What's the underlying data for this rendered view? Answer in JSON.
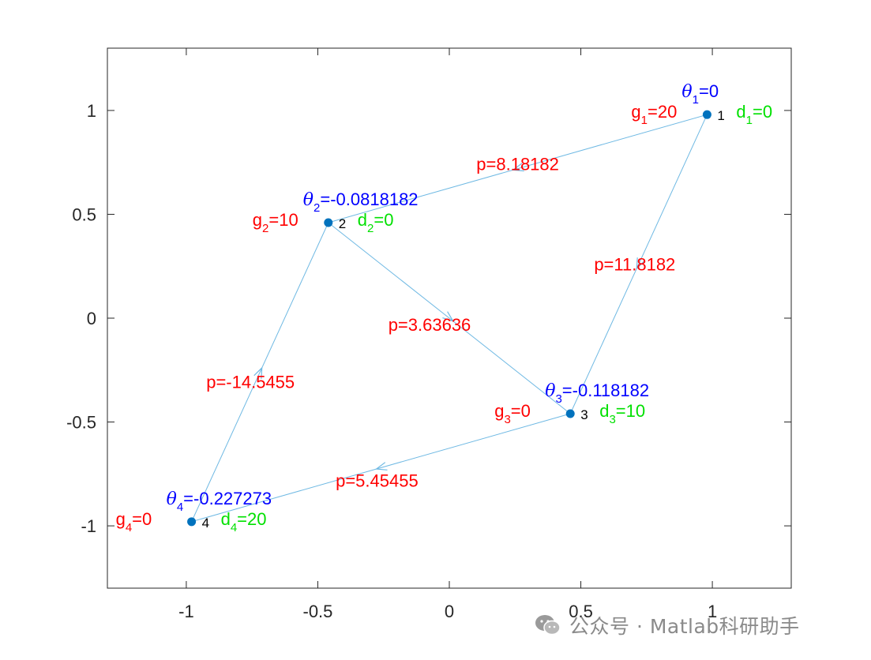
{
  "chart_data": {
    "type": "network-graph",
    "title": "",
    "xlim": [
      -1.3,
      1.3
    ],
    "ylim": [
      -1.3,
      1.3
    ],
    "xticks": [
      -1,
      -0.5,
      0,
      0.5,
      1
    ],
    "yticks": [
      -1,
      -0.5,
      0,
      0.5,
      1
    ],
    "xtick_labels": [
      "-1",
      "-0.5",
      "0",
      "0.5",
      "1"
    ],
    "ytick_labels": [
      "-1",
      "-0.5",
      "0",
      "0.5",
      "1"
    ],
    "colors": {
      "edge": "#6fb9e3",
      "node": "#0072bd",
      "flow_label": "#ff0000",
      "gen_label": "#ff0000",
      "demand_label": "#00e000",
      "angle_label": "#0000ff",
      "axis": "#262626"
    },
    "nodes": [
      {
        "id": "1",
        "x": 0.98,
        "y": 0.98,
        "theta": "=0",
        "g": "=20",
        "d": "=0",
        "theta_sub": "1",
        "g_sub": "1",
        "d_sub": "1"
      },
      {
        "id": "2",
        "x": -0.46,
        "y": 0.46,
        "theta": "=-0.0818182",
        "g": "=10",
        "d": "=0",
        "theta_sub": "2",
        "g_sub": "2",
        "d_sub": "2"
      },
      {
        "id": "3",
        "x": 0.46,
        "y": -0.46,
        "theta": "=-0.118182",
        "g": "=0",
        "d": "=10",
        "theta_sub": "3",
        "g_sub": "3",
        "d_sub": "3"
      },
      {
        "id": "4",
        "x": -0.98,
        "y": -0.98,
        "theta": "=-0.227273",
        "g": "=0",
        "d": "=20",
        "theta_sub": "4",
        "g_sub": "4",
        "d_sub": "4"
      }
    ],
    "edges": [
      {
        "from": "1",
        "to": "2",
        "label": "p=8.18182"
      },
      {
        "from": "1",
        "to": "3",
        "label": "p=11.8182"
      },
      {
        "from": "2",
        "to": "3",
        "label": "p=3.63636"
      },
      {
        "from": "4",
        "to": "2",
        "label": "p=-14.5455"
      },
      {
        "from": "3",
        "to": "4",
        "label": "p=5.45455"
      }
    ]
  },
  "watermark": {
    "text": "公众号 · Matlab科研助手",
    "icon": "wechat-icon"
  }
}
